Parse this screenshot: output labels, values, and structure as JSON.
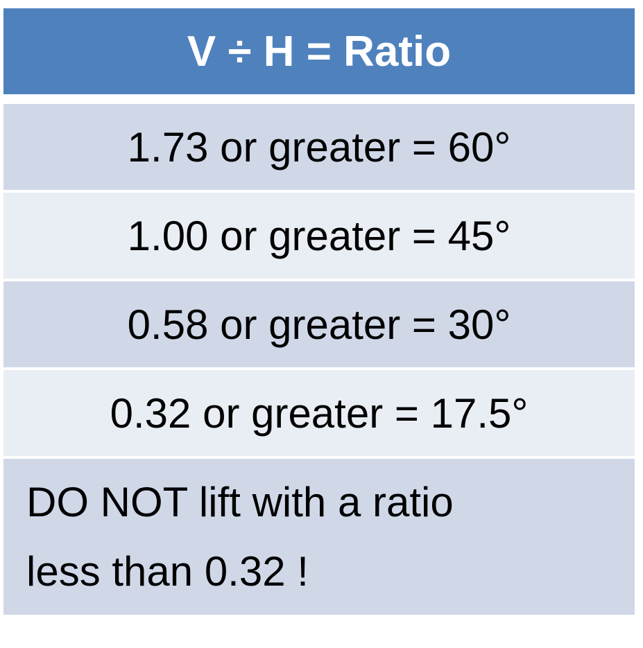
{
  "table": {
    "header": "V ÷ H = Ratio",
    "rows": [
      "1.73 or greater = 60°",
      "1.00 or greater = 45°",
      "0.58 or greater = 30°",
      "0.32 or greater = 17.5°"
    ],
    "note": "DO NOT lift with a ratio less than 0.32 !"
  }
}
